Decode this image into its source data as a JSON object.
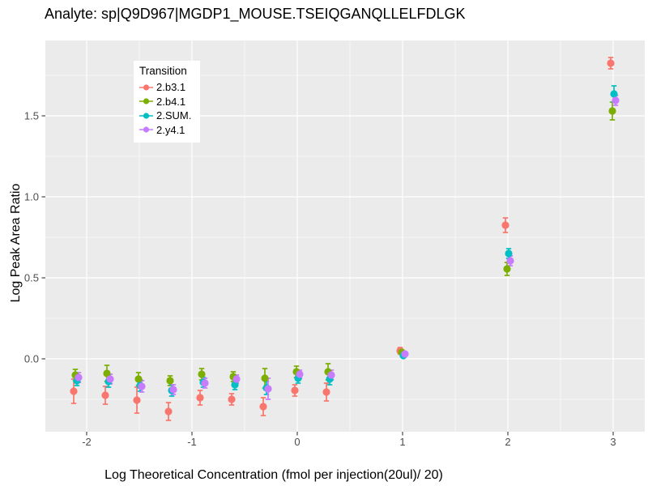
{
  "chart_data": {
    "type": "scatter",
    "title": "Analyte: sp|Q9D967|MGDP1_MOUSE.TSEIQGANQLLELFDLGK",
    "xlabel": "Log Theoretical Concentration (fmol per injection(20ul)/ 20)",
    "ylabel": "Log Peak Area Ratio",
    "legend": {
      "title": "Transition",
      "position": "top-left-inset"
    },
    "panel_bg": "#EBEBEB",
    "grid_color": "#FFFFFF",
    "axis_text_color": "#4D4D4D",
    "tick_color": "#333333",
    "x_ticks": [
      -2,
      -1,
      0,
      1,
      2,
      3
    ],
    "y_ticks": [
      0,
      0.5,
      1,
      1.5
    ],
    "xlim": [
      -2.39,
      3.3
    ],
    "ylim": [
      -0.45,
      1.96
    ],
    "x": [
      -2.1,
      -1.8,
      -1.5,
      -1.2,
      -0.9,
      -0.6,
      -0.3,
      0,
      0.3,
      1,
      2,
      3
    ],
    "series": [
      {
        "name": "2.b3.1",
        "color": "#F8766D",
        "values": [
          -0.2,
          -0.225,
          -0.255,
          -0.325,
          -0.24,
          -0.25,
          -0.295,
          -0.195,
          -0.205,
          0.05,
          0.825,
          1.825
        ],
        "errors": [
          0.075,
          0.055,
          0.08,
          0.055,
          0.045,
          0.035,
          0.055,
          0.035,
          0.055,
          0.02,
          0.045,
          0.035
        ]
      },
      {
        "name": "2.b4.1",
        "color": "#7CAE00",
        "values": [
          -0.1,
          -0.09,
          -0.125,
          -0.135,
          -0.095,
          -0.11,
          -0.12,
          -0.08,
          -0.08,
          0.04,
          0.555,
          1.53
        ],
        "errors": [
          0.035,
          0.05,
          0.04,
          0.03,
          0.035,
          0.03,
          0.06,
          0.035,
          0.05,
          0.015,
          0.04,
          0.055
        ]
      },
      {
        "name": "2.SUM.",
        "color": "#00BFC4",
        "values": [
          -0.135,
          -0.14,
          -0.165,
          -0.195,
          -0.145,
          -0.16,
          -0.18,
          -0.12,
          -0.125,
          0.02,
          0.65,
          1.635
        ],
        "errors": [
          0.03,
          0.035,
          0.035,
          0.035,
          0.03,
          0.03,
          0.04,
          0.03,
          0.035,
          0.01,
          0.03,
          0.05
        ]
      },
      {
        "name": "2.y4.1",
        "color": "#C77CFF",
        "values": [
          -0.115,
          -0.125,
          -0.17,
          -0.19,
          -0.15,
          -0.125,
          -0.185,
          -0.095,
          -0.1,
          0.03,
          0.605,
          1.595
        ],
        "errors": [
          0.03,
          0.03,
          0.035,
          0.03,
          0.03,
          0.025,
          0.065,
          0.025,
          0.03,
          0.01,
          0.03,
          0.03
        ]
      }
    ]
  }
}
